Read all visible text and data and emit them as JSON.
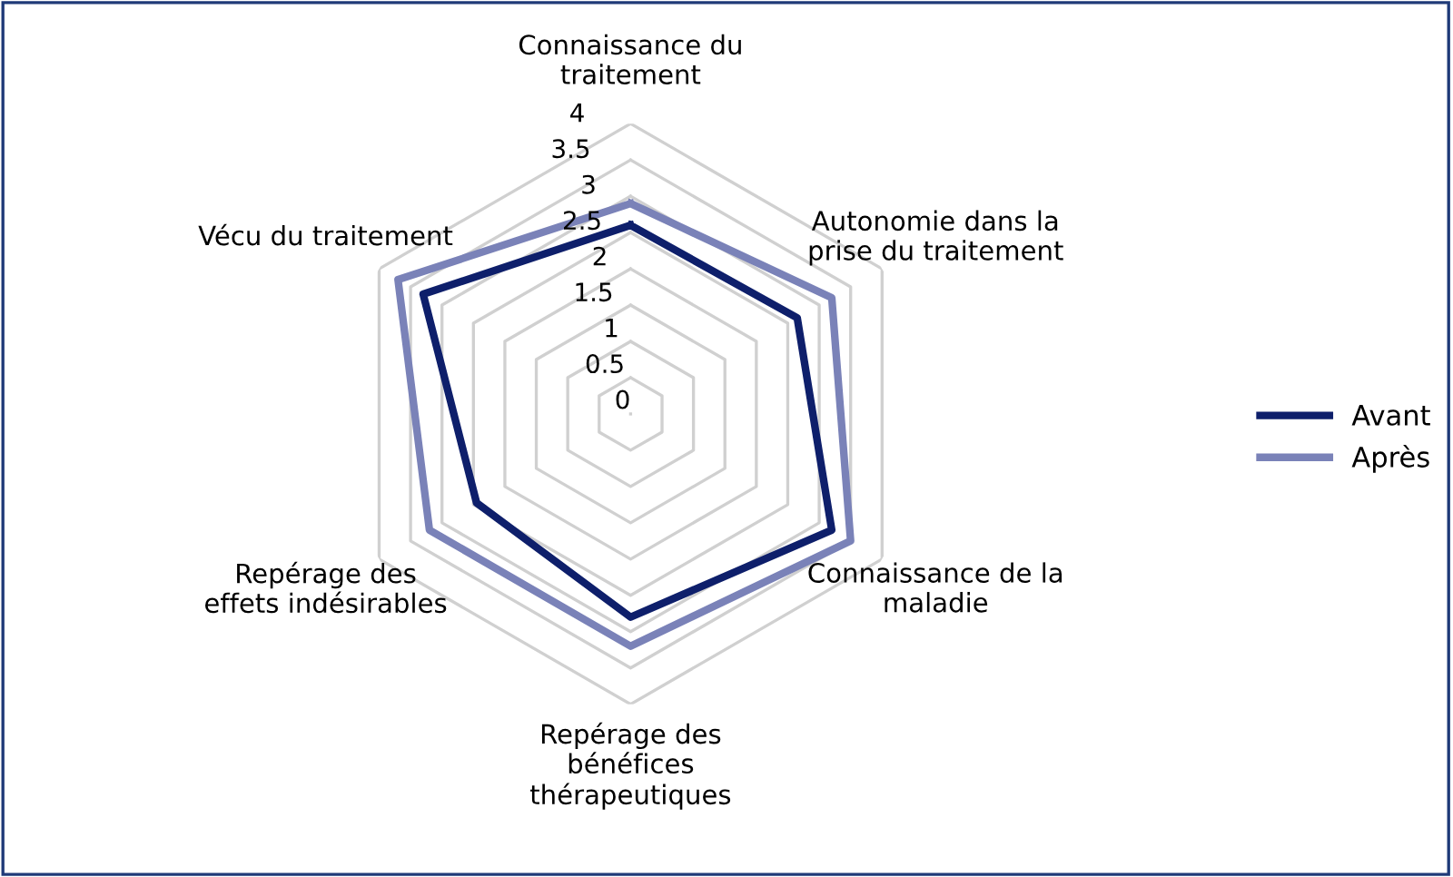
{
  "chart_data": {
    "type": "radar",
    "categories": [
      "Connaissance du\ntraitement",
      "Autonomie dans la\nprise du traitement",
      "Connaissance de la\nmaladie",
      "Repérage des\nbénéfices\nthérapeutiques",
      "Repérage des\neffets indésirables",
      "Vécu du traitement"
    ],
    "series": [
      {
        "name": "Avant",
        "color": "#0e1f6b",
        "values": [
          2.6,
          2.65,
          3.2,
          2.8,
          2.45,
          3.3
        ]
      },
      {
        "name": "Après",
        "color": "#7a82b8",
        "values": [
          2.9,
          3.2,
          3.5,
          3.2,
          3.2,
          3.7
        ]
      }
    ],
    "ylim": [
      0,
      4
    ],
    "yticks": [
      0,
      0.5,
      1,
      1.5,
      2,
      2.5,
      3,
      3.5,
      4
    ],
    "legend": "right",
    "grid": true
  }
}
